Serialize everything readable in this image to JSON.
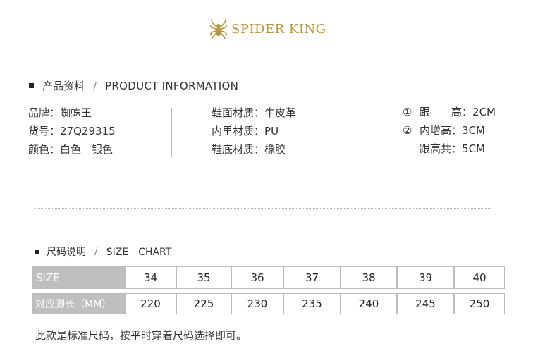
{
  "brand": {
    "logo_text": "SPIDER KING",
    "color": "#b9973e"
  },
  "product_info": {
    "title_zh": "产品资料",
    "title_en": "PRODUCT INFORMATION",
    "col1": [
      {
        "label": "品牌",
        "sep": "：",
        "value": "蜘蛛王"
      },
      {
        "label": "货号",
        "sep": "：",
        "value": "27Q29315"
      },
      {
        "label": "颜色",
        "sep": "：",
        "value": "白色　银色"
      }
    ],
    "col2": [
      {
        "label": "鞋面材质",
        "sep": "：",
        "value": "牛皮革"
      },
      {
        "label": "内里材质",
        "sep": "：",
        "value": "PU"
      },
      {
        "label": "鞋底材质",
        "sep": "：",
        "value": "橡胶"
      }
    ],
    "col3": [
      {
        "prefix": "①",
        "label": "跟　　高",
        "sep": "：",
        "value": "2CM"
      },
      {
        "prefix": "②",
        "label": "内增高",
        "sep": "：",
        "value": "3CM"
      },
      {
        "prefix": "",
        "label": "跟高共",
        "sep": "：",
        "value": "5CM"
      }
    ]
  },
  "size_chart": {
    "title_zh": "尺码说明",
    "title_en": "SIZE　CHART",
    "row1_header": "SIZE",
    "row2_header": "对应脚长（MM）",
    "sizes": [
      "34",
      "35",
      "36",
      "37",
      "38",
      "39",
      "40"
    ],
    "lengths": [
      "220",
      "225",
      "230",
      "235",
      "240",
      "245",
      "250"
    ],
    "header_bg": "#bfbfbf"
  },
  "note": "此款是标准尺码，按平时穿着尺码选择即可。"
}
